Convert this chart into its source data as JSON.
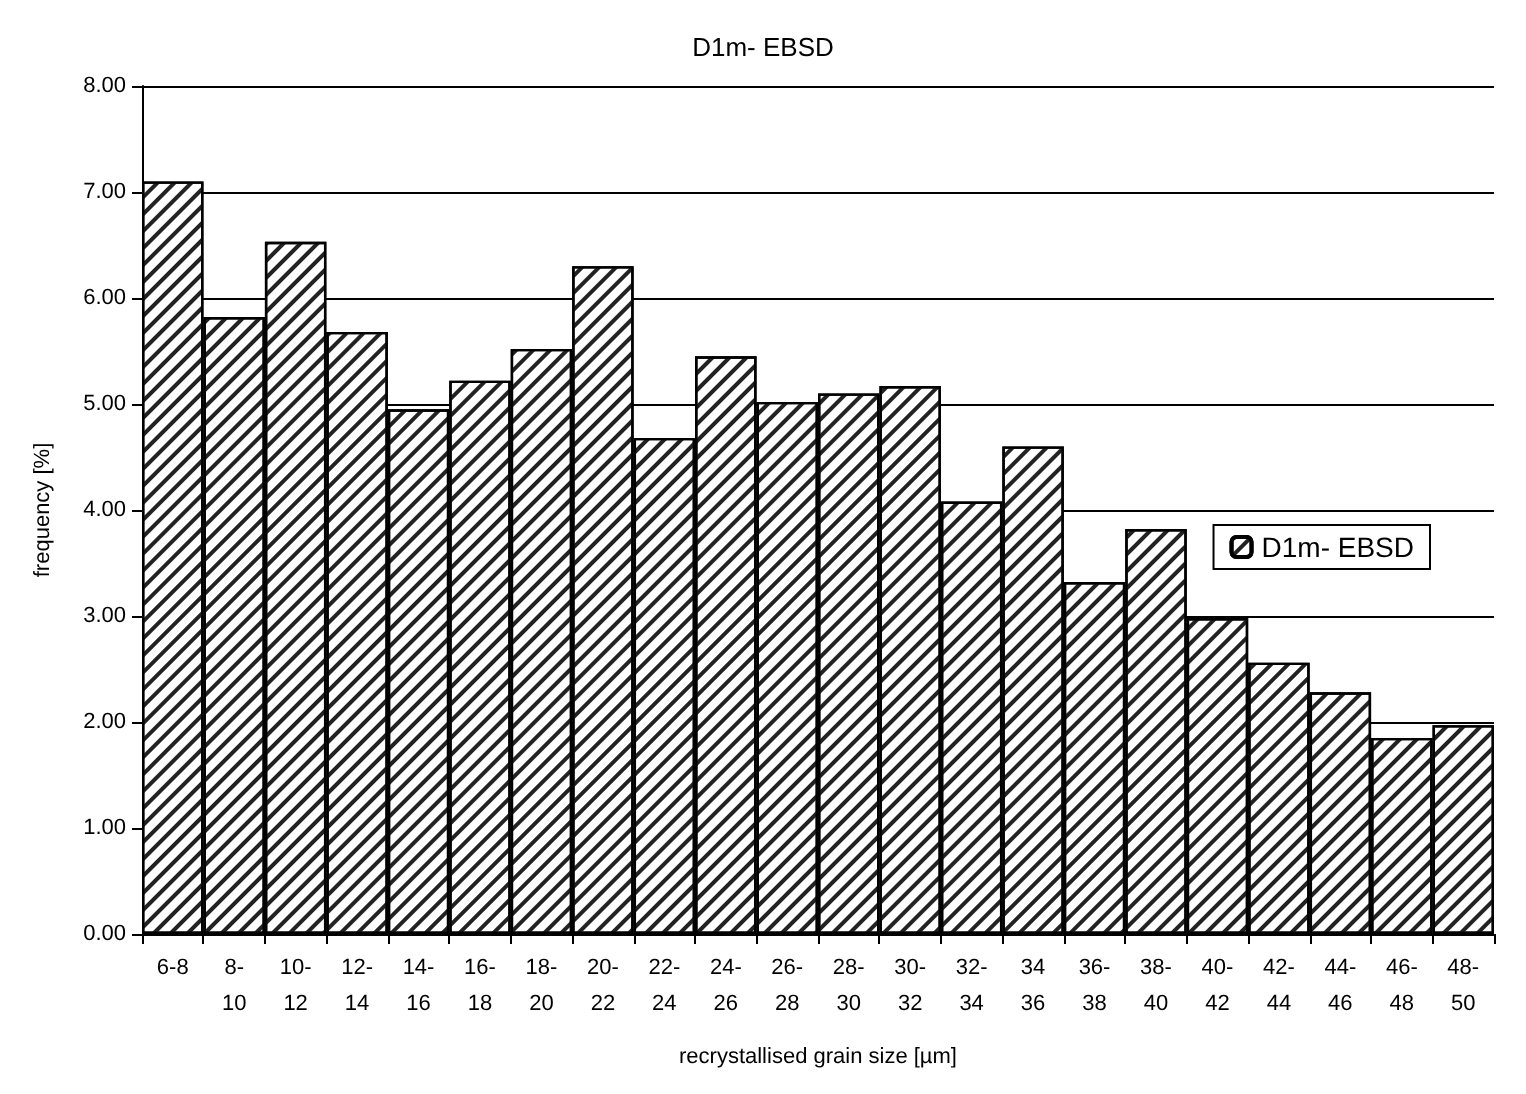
{
  "chart_data": {
    "type": "bar",
    "title": "D1m- EBSD",
    "xlabel": "recrystallised grain size [µm]",
    "ylabel": "frequency [%]",
    "categories": [
      "6-8",
      "8-\n10",
      "10-\n12",
      "12-\n14",
      "14-\n16",
      "16-\n18",
      "18-\n20",
      "20-\n22",
      "22-\n24",
      "24-\n26",
      "26-\n28",
      "28-\n30",
      "30-\n32",
      "32-\n34",
      "34\n36",
      "36-\n38",
      "38-\n40",
      "40-\n42",
      "42-\n44",
      "44-\n46",
      "46-\n48",
      "48-\n50"
    ],
    "series": [
      {
        "name": "D1m- EBSD",
        "color": "#ffffff",
        "values": [
          7.1,
          5.82,
          6.53,
          5.68,
          4.95,
          5.22,
          5.52,
          6.3,
          4.68,
          5.45,
          5.02,
          5.1,
          5.17,
          4.08,
          4.6,
          3.32,
          3.82,
          2.98,
          2.56,
          2.28,
          1.85,
          1.97
        ]
      }
    ],
    "ylim": [
      0,
      8
    ],
    "yticks": [
      {
        "value": 0,
        "label": "0.00"
      },
      {
        "value": 1,
        "label": "1.00"
      },
      {
        "value": 2,
        "label": "2.00"
      },
      {
        "value": 3,
        "label": "3.00"
      },
      {
        "value": 4,
        "label": "4.00"
      },
      {
        "value": 5,
        "label": "5.00"
      },
      {
        "value": 6,
        "label": "6.00"
      },
      {
        "value": 7,
        "label": "7.00"
      },
      {
        "value": 8,
        "label": "8.00"
      }
    ],
    "grid": "y",
    "legend": "right"
  }
}
